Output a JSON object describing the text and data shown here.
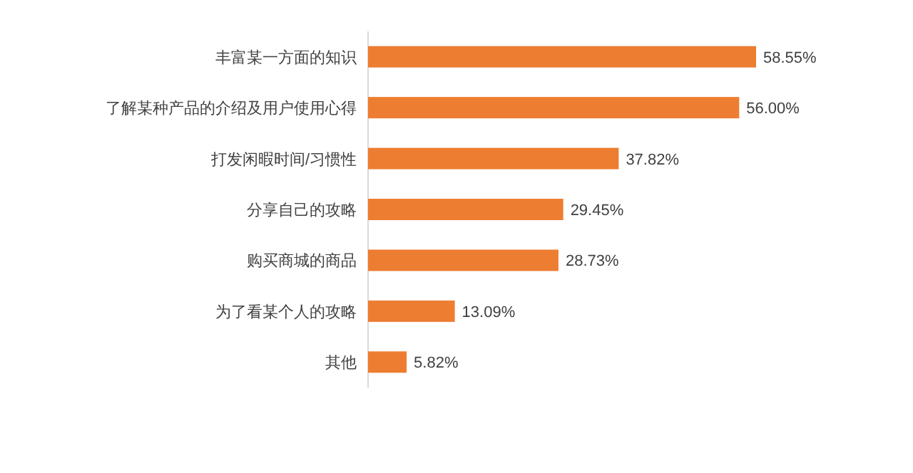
{
  "chart_data": {
    "type": "bar",
    "orientation": "horizontal",
    "categories": [
      "丰富某一方面的知识",
      "了解某种产品的介绍及用户使用心得",
      "打发闲暇时间/习惯性",
      "分享自己的攻略",
      "购买商城的商品",
      "为了看某个人的攻略",
      "其他"
    ],
    "values": [
      58.55,
      56.0,
      37.82,
      29.45,
      28.73,
      13.09,
      5.82
    ],
    "color": "#ed7d31",
    "value_labels": [
      "58.55%",
      "56.00%",
      "37.82%",
      "29.45%",
      "28.73%",
      "13.09%",
      "5.82%"
    ]
  }
}
